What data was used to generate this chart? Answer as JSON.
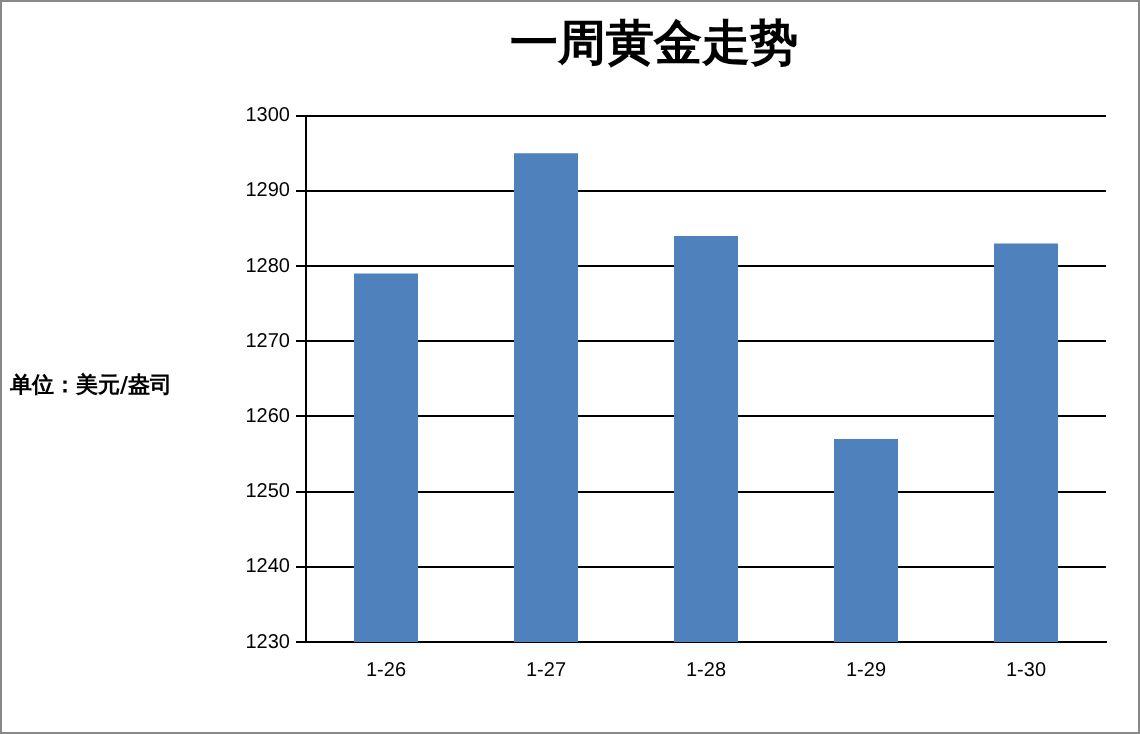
{
  "chart_data": {
    "type": "bar",
    "title": "一周黄金走势",
    "ylabel": "单位：美元/盎司",
    "categories": [
      "1-26",
      "1-27",
      "1-28",
      "1-29",
      "1-30"
    ],
    "values": [
      1279,
      1295,
      1284,
      1257,
      1283
    ],
    "color": "#4f81bd",
    "ylim": [
      1230,
      1300
    ],
    "yticks": [
      1230,
      1240,
      1250,
      1260,
      1270,
      1280,
      1290,
      1300
    ],
    "grid": "y",
    "legend": false
  }
}
